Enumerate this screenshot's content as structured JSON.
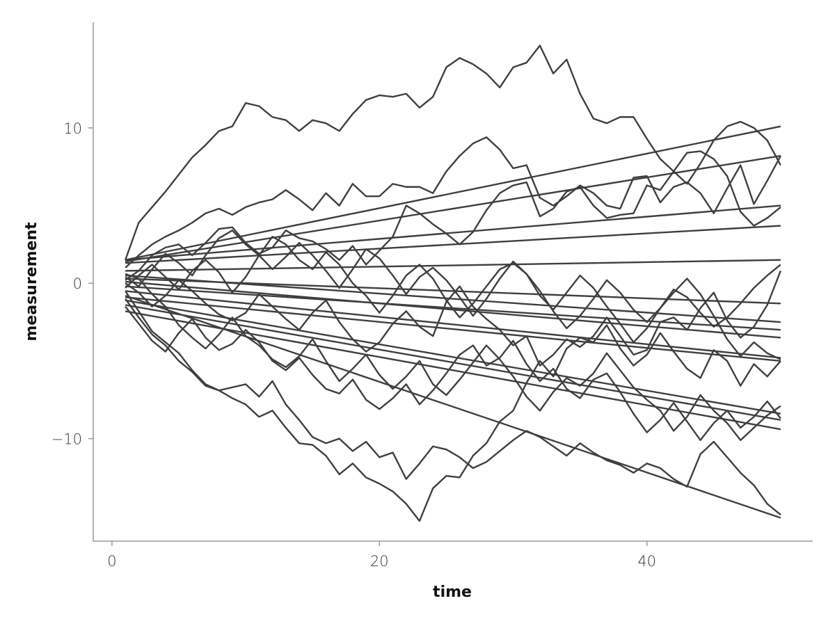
{
  "chart_data": {
    "type": "line",
    "x_label": "time",
    "y_label": "measurement",
    "color": "#3f3f3f",
    "xlim": [
      -1.4,
      52.4
    ],
    "ylim": [
      -16.6,
      16.8
    ],
    "xticks": [
      0,
      20,
      40
    ],
    "yticks": [
      {
        "value": -10,
        "label": "−10"
      },
      0,
      10
    ],
    "x": [
      1,
      2,
      3,
      4,
      5,
      6,
      7,
      8,
      9,
      10,
      11,
      12,
      13,
      14,
      15,
      16,
      17,
      18,
      19,
      20,
      21,
      22,
      23,
      24,
      25,
      26,
      27,
      28,
      29,
      30,
      31,
      32,
      33,
      34,
      35,
      36,
      37,
      38,
      39,
      40,
      41,
      42,
      43,
      44,
      45,
      46,
      47,
      48,
      49,
      50
    ],
    "series": [
      {
        "values": [
          1.5,
          3.9,
          4.9,
          5.9,
          7.0,
          8.1,
          8.9,
          9.8,
          10.1,
          11.6,
          11.4,
          10.7,
          10.5,
          9.8,
          10.5,
          10.3,
          9.8,
          10.9,
          11.8,
          12.1,
          12.0,
          12.2,
          11.3,
          12.0,
          13.9,
          14.5,
          14.1,
          13.5,
          12.6,
          13.9,
          14.2,
          15.3,
          13.5,
          14.4,
          12.2,
          10.6,
          10.3,
          10.7,
          10.7,
          9.3,
          8.0,
          7.2,
          6.4,
          7.7,
          9.2,
          10.1,
          10.4,
          10.0,
          9.2,
          7.6
        ]
      },
      {
        "values": [
          1.0,
          1.8,
          2.5,
          3.0,
          3.4,
          3.9,
          4.5,
          4.8,
          4.4,
          4.9,
          5.2,
          5.4,
          6.0,
          5.4,
          4.7,
          5.8,
          5.0,
          6.4,
          5.6,
          5.6,
          6.4,
          6.2,
          6.2,
          5.8,
          7.2,
          8.2,
          9.0,
          9.4,
          8.6,
          7.4,
          7.6,
          5.5,
          5.0,
          5.6,
          6.3,
          5.8,
          5.0,
          4.8,
          6.8,
          6.9,
          5.2,
          6.2,
          6.5,
          5.8,
          4.5,
          6.1,
          7.6,
          5.1,
          6.6,
          8.2
        ]
      },
      {
        "values": [
          -1.0,
          -2.2,
          -3.3,
          -4.0,
          -5.0,
          -5.7,
          -6.6,
          -6.9,
          -7.4,
          -7.8,
          -8.6,
          -8.2,
          -9.3,
          -10.3,
          -10.4,
          -11.1,
          -12.3,
          -11.6,
          -12.5,
          -12.9,
          -13.4,
          -14.2,
          -15.3,
          -13.2,
          -12.4,
          -12.5,
          -11.1,
          -10.3,
          -8.9,
          -8.2,
          -6.4,
          -5.0,
          -6.0,
          -4.2,
          -3.5,
          -3.8,
          -2.7,
          -4.2,
          -5.3,
          -4.6,
          -3.2,
          -4.4,
          -5.5,
          -6.1,
          -4.3,
          -5.0,
          -6.6,
          -5.2,
          -6.0,
          -5.0
        ]
      },
      {
        "values": [
          -0.5,
          -1.8,
          -3.1,
          -3.8,
          -4.5,
          -5.6,
          -6.5,
          -6.9,
          -6.7,
          -6.5,
          -7.3,
          -6.3,
          -7.8,
          -8.8,
          -9.9,
          -10.3,
          -10.0,
          -10.8,
          -10.2,
          -11.2,
          -10.9,
          -12.6,
          -11.6,
          -10.5,
          -10.7,
          -11.2,
          -11.9,
          -11.5,
          -10.8,
          -10.1,
          -9.5,
          -9.9,
          -10.5,
          -11.1,
          -10.3,
          -10.9,
          -11.4,
          -11.7,
          -12.2,
          -11.6,
          -11.9,
          -12.6,
          -13.1,
          -11.0,
          -10.2,
          -11.2,
          -12.2,
          -13.0,
          -14.2,
          -14.9
        ]
      },
      {
        "values": [
          0.2,
          0.8,
          1.8,
          2.3,
          2.5,
          1.8,
          2.6,
          3.5,
          3.6,
          2.6,
          1.9,
          2.3,
          3.4,
          2.9,
          2.7,
          2.2,
          1.5,
          2.4,
          1.2,
          2.1,
          3.0,
          5.0,
          4.5,
          3.8,
          3.2,
          2.5,
          3.3,
          4.7,
          5.8,
          6.3,
          6.5,
          4.3,
          4.8,
          5.9,
          6.2,
          5.0,
          4.2,
          4.4,
          4.5,
          6.3,
          6.0,
          7.2,
          8.4,
          8.5,
          8.0,
          6.9,
          4.6,
          3.7,
          4.2,
          4.9
        ]
      },
      {
        "values": [
          0.0,
          -0.6,
          -1.5,
          -0.8,
          0.2,
          -0.5,
          -1.3,
          -2.0,
          -2.4,
          -1.9,
          -0.7,
          -1.5,
          -2.3,
          -3.0,
          -1.9,
          -1.1,
          -2.5,
          -3.6,
          -4.4,
          -3.8,
          -2.6,
          -1.8,
          -2.8,
          -3.4,
          -1.2,
          -0.2,
          -1.5,
          -2.3,
          -3.0,
          -4.0,
          -3.4,
          -5.3,
          -4.6,
          -3.6,
          -4.1,
          -3.4,
          -2.2,
          -3.4,
          -4.6,
          -4.3,
          -2.5,
          -2.2,
          -3.0,
          -1.6,
          -0.6,
          -2.4,
          -3.5,
          -2.8,
          -1.4,
          0.8
        ]
      },
      {
        "values": [
          0.6,
          0.3,
          -0.7,
          -1.5,
          -2.7,
          -3.5,
          -4.2,
          -3.3,
          -2.2,
          -3.4,
          -4.0,
          -4.9,
          -5.4,
          -4.7,
          -3.6,
          -5.0,
          -6.3,
          -5.5,
          -4.6,
          -5.9,
          -6.8,
          -6.0,
          -5.0,
          -6.5,
          -7.2,
          -6.2,
          -5.1,
          -4.0,
          -4.9,
          -6.0,
          -7.3,
          -8.2,
          -7.0,
          -6.1,
          -6.6,
          -5.8,
          -4.5,
          -5.6,
          -6.7,
          -7.5,
          -8.2,
          -9.5,
          -8.6,
          -7.2,
          -8.2,
          -9.0,
          -10.1,
          -9.3,
          -8.5,
          -7.9
        ]
      },
      {
        "values": [
          -0.3,
          0.5,
          1.2,
          0.4,
          -0.4,
          0.8,
          1.5,
          0.7,
          -0.6,
          0.4,
          1.8,
          3.0,
          2.5,
          1.5,
          0.9,
          2.0,
          1.2,
          0.0,
          -0.8,
          -1.9,
          -0.8,
          0.5,
          1.2,
          0.3,
          -1.1,
          -2.2,
          -1.3,
          -0.2,
          0.9,
          1.3,
          0.6,
          -0.5,
          -1.8,
          -2.9,
          -2.1,
          -1.0,
          0.2,
          -0.6,
          -1.7,
          -2.5,
          -1.6,
          -0.4,
          -0.9,
          -1.9,
          -2.8,
          -2.2,
          -1.3,
          -0.3,
          0.5,
          1.2
        ]
      },
      {
        "values": [
          -1.5,
          -2.6,
          -3.7,
          -4.4,
          -3.2,
          -2.3,
          -3.5,
          -4.3,
          -3.9,
          -3.0,
          -3.8,
          -5.0,
          -5.6,
          -4.8,
          -5.9,
          -6.8,
          -7.1,
          -6.2,
          -7.5,
          -8.1,
          -7.4,
          -6.5,
          -7.8,
          -6.9,
          -5.8,
          -4.6,
          -4.0,
          -5.3,
          -4.8,
          -3.7,
          -5.2,
          -6.3,
          -5.5,
          -6.8,
          -7.4,
          -6.2,
          -5.8,
          -7.0,
          -8.4,
          -9.6,
          -8.8,
          -7.7,
          -8.9,
          -10.1,
          -9.0,
          -8.2,
          -9.3,
          -8.6,
          -7.6,
          -8.7
        ]
      },
      {
        "values": [
          0.4,
          -0.2,
          0.9,
          1.9,
          1.3,
          0.5,
          1.8,
          2.9,
          3.4,
          2.5,
          1.8,
          0.9,
          1.7,
          2.6,
          1.8,
          0.8,
          -0.3,
          0.9,
          2.2,
          1.6,
          0.5,
          -0.7,
          0.4,
          1.0,
          0.2,
          -0.9,
          -2.1,
          -1.0,
          0.3,
          1.4,
          0.6,
          -0.8,
          -1.7,
          -0.6,
          0.5,
          -0.3,
          -1.5,
          -2.6,
          -3.8,
          -2.9,
          -1.6,
          -0.6,
          0.3,
          -0.7,
          -2.1,
          -3.6,
          -4.7,
          -3.8,
          -4.5,
          -4.9
        ]
      },
      {
        "x": [
          1,
          50
        ],
        "values": [
          1.5,
          10.1
        ]
      },
      {
        "x": [
          1,
          50
        ],
        "values": [
          1.4,
          8.2
        ]
      },
      {
        "x": [
          1,
          50
        ],
        "values": [
          1.5,
          5.0
        ]
      },
      {
        "x": [
          1,
          50
        ],
        "values": [
          1.3,
          3.7
        ]
      },
      {
        "x": [
          1,
          50
        ],
        "values": [
          0.8,
          1.5
        ]
      },
      {
        "x": [
          1,
          50
        ],
        "values": [
          0.3,
          -1.3
        ]
      },
      {
        "x": [
          1,
          50
        ],
        "values": [
          0.5,
          -2.5
        ]
      },
      {
        "x": [
          1,
          50
        ],
        "values": [
          -0.2,
          -3.0
        ]
      },
      {
        "x": [
          1,
          50
        ],
        "values": [
          0.1,
          -3.5
        ]
      },
      {
        "x": [
          1,
          50
        ],
        "values": [
          -0.5,
          -4.8
        ]
      },
      {
        "x": [
          1,
          50
        ],
        "values": [
          -0.9,
          -5.0
        ]
      },
      {
        "x": [
          1,
          50
        ],
        "values": [
          -1.1,
          -8.4
        ]
      },
      {
        "x": [
          1,
          50
        ],
        "values": [
          -1.4,
          -8.8
        ]
      },
      {
        "x": [
          1,
          50
        ],
        "values": [
          -1.8,
          -9.4
        ]
      },
      {
        "x": [
          1,
          50
        ],
        "values": [
          -0.8,
          -15.1
        ]
      }
    ]
  }
}
